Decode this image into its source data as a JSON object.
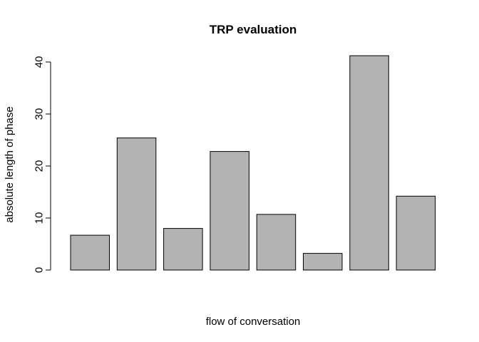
{
  "chart_data": {
    "type": "bar",
    "title": "TRP evaluation",
    "xlabel": "flow of conversation",
    "ylabel": "absolute length of phase",
    "categories": [
      "",
      "",
      "",
      "",
      "",
      "",
      "",
      ""
    ],
    "values": [
      6.7,
      25.4,
      8.0,
      22.8,
      10.7,
      3.2,
      41.2,
      14.2
    ],
    "ylim": [
      0,
      40
    ],
    "yticks": [
      0,
      10,
      20,
      30,
      40
    ],
    "bar_color": "#b3b3b3",
    "bar_edge_color": "#000000",
    "grid": false,
    "legend": "none"
  }
}
